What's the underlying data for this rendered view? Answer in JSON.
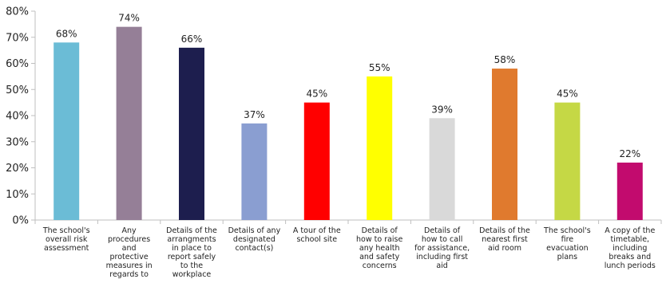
{
  "chart_data": {
    "type": "bar",
    "categories": [
      "The school's overall risk assessment",
      "Any procedures and protective measures in regards to",
      "Details of the arrangments in place to report safely to the workplace",
      "Details of any designated contact(s)",
      "A tour of the school site",
      "Details of how to raise any health and safety concerns",
      "Details of how to call for assistance, including first aid",
      "Details of the nearest first aid room",
      "The school's fire evacuation plans",
      "A copy of the timetable, including breaks and lunch periods"
    ],
    "category_lines": [
      [
        "The school's",
        "overall risk",
        "assessment"
      ],
      [
        "Any",
        "procedures",
        "and",
        "protective",
        "measures in",
        "regards to"
      ],
      [
        "Details of the",
        "arrangments",
        "in place to",
        "report safely",
        "to the",
        "workplace"
      ],
      [
        "Details of any",
        "designated",
        "contact(s)"
      ],
      [
        "A tour of the",
        "school site"
      ],
      [
        "Details of",
        "how to raise",
        "any health",
        "and safety",
        "concerns"
      ],
      [
        "Details of",
        "how to call",
        "for assistance,",
        "including first",
        "aid"
      ],
      [
        "Details of the",
        "nearest first",
        "aid room"
      ],
      [
        "The school's",
        "fire",
        "evacuation",
        "plans"
      ],
      [
        "A copy of the",
        "timetable,",
        "including",
        "breaks and",
        "lunch periods"
      ]
    ],
    "values": [
      68,
      74,
      66,
      37,
      45,
      55,
      39,
      58,
      45,
      22
    ],
    "value_labels": [
      "68%",
      "74%",
      "66%",
      "37%",
      "45%",
      "55%",
      "39%",
      "58%",
      "45%",
      "22%"
    ],
    "colors": [
      "#6BBCD6",
      "#957F97",
      "#1D1E4E",
      "#8A9ED1",
      "#FF0000",
      "#FFFF00",
      "#D9D9D9",
      "#E07A2E",
      "#C5D845",
      "#C20B6E"
    ],
    "ylim": [
      0,
      80
    ],
    "yticks": [
      0,
      10,
      20,
      30,
      40,
      50,
      60,
      70,
      80
    ],
    "ytick_labels": [
      "0%",
      "10%",
      "20%",
      "30%",
      "40%",
      "50%",
      "60%",
      "70%",
      "80%"
    ],
    "title": "",
    "xlabel": "",
    "ylabel": "",
    "grid": false,
    "legend": "none"
  }
}
